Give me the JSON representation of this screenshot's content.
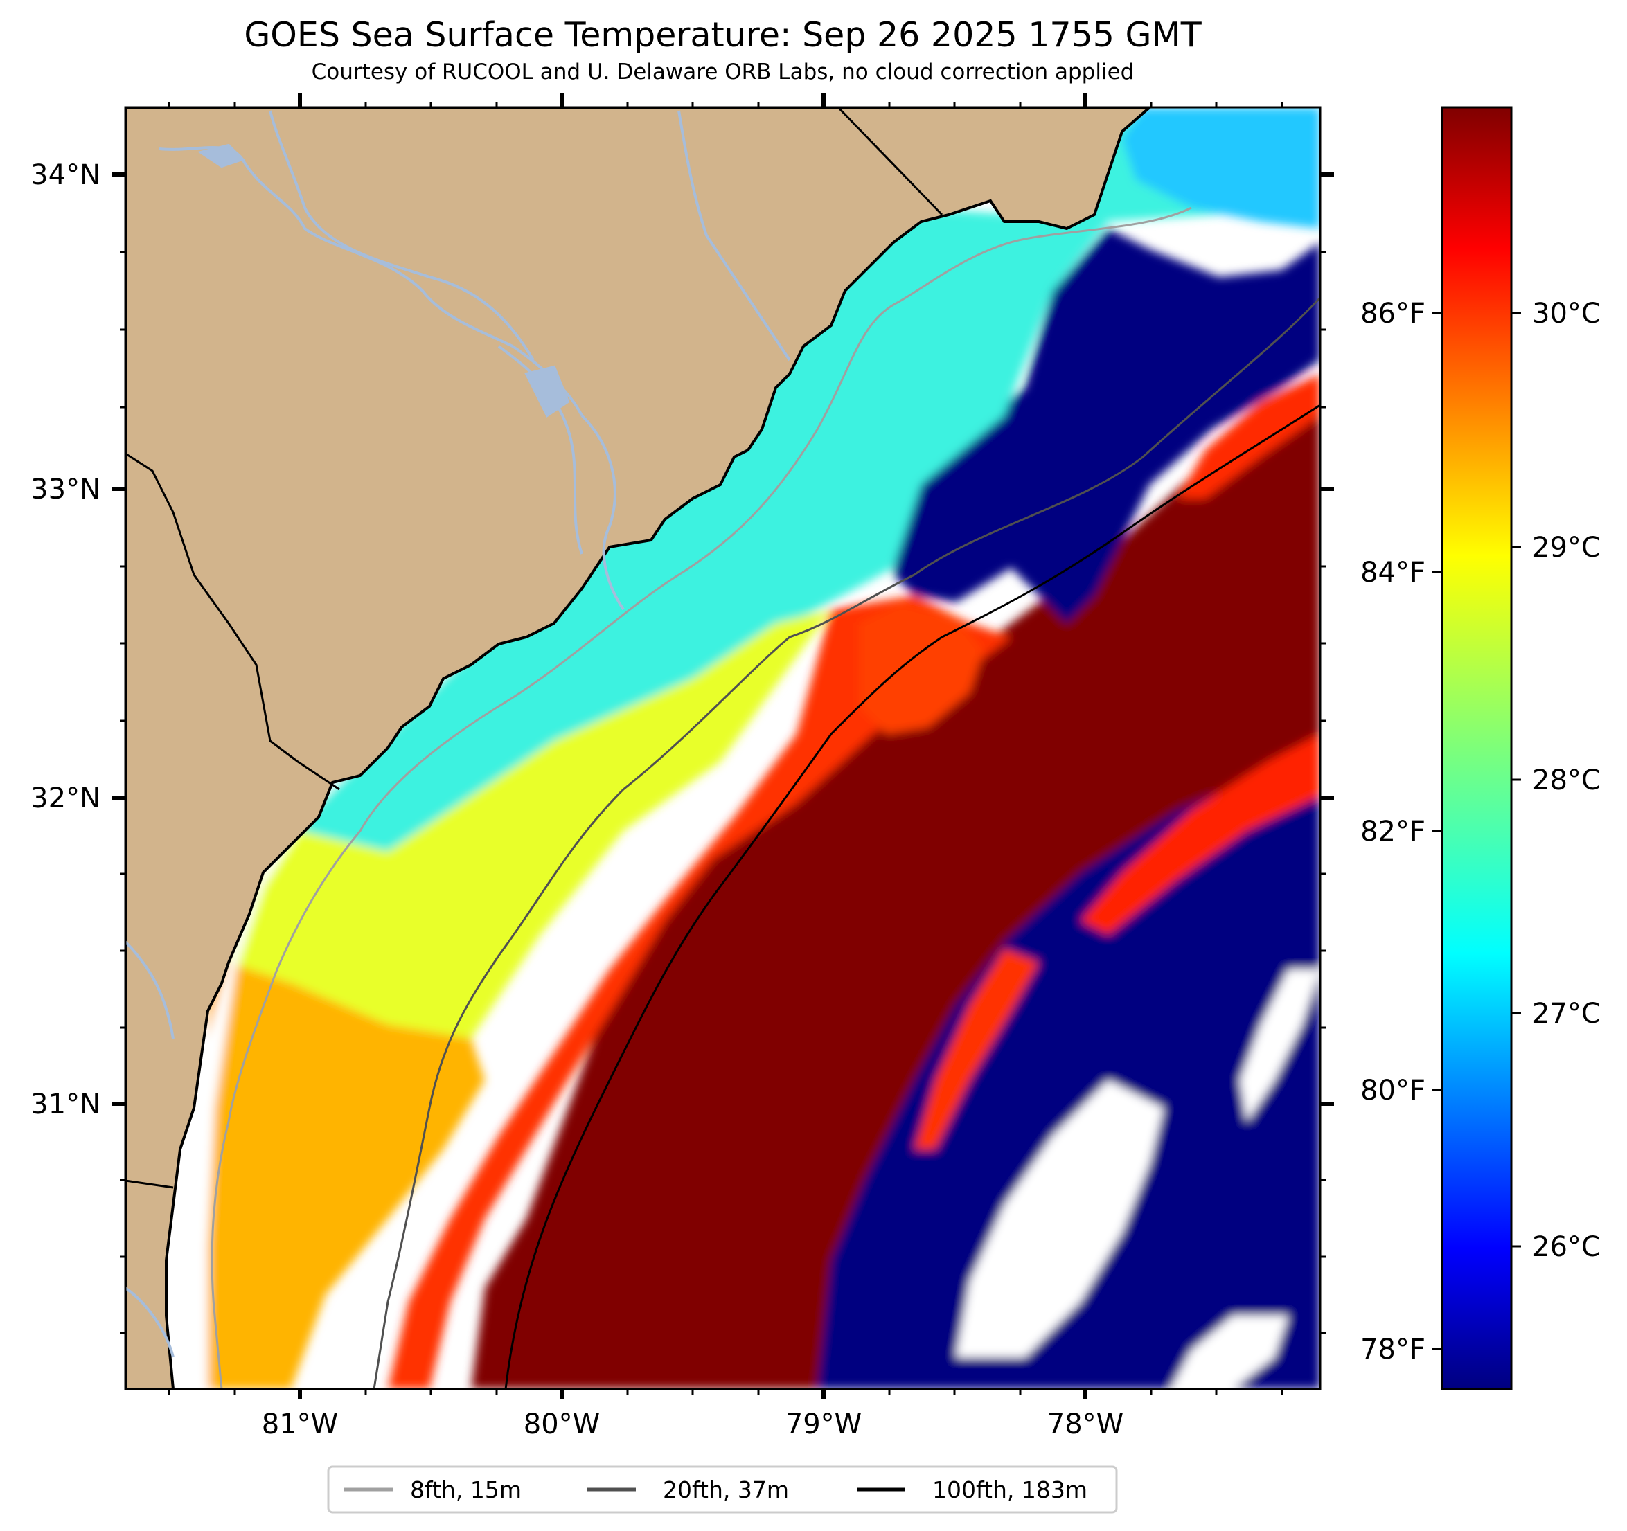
{
  "title": "GOES Sea Surface Temperature: Sep 26 2025 1755 GMT",
  "subtitle": "Courtesy of RUCOOL and U. Delaware ORB Labs, no cloud correction applied",
  "map": {
    "lon_range": [
      -81.67,
      -77.1
    ],
    "lat_range": [
      30.1,
      34.22
    ],
    "lon_ticks": [
      "81°W",
      "80°W",
      "79°W",
      "78°W"
    ],
    "lat_ticks": [
      "34°N",
      "33°N",
      "32°N",
      "31°N"
    ],
    "colors": {
      "land": "#d2b48c",
      "rivers": "#a6bddb",
      "coastline": "#000000",
      "no_data": "#ffffff",
      "cold_water": "#000080",
      "warm_water": "#800000"
    },
    "colormap": "jet"
  },
  "colorbar": {
    "celsius_ticks": [
      "26°C",
      "27°C",
      "28°C",
      "29°C",
      "30°C"
    ],
    "fahrenheit_ticks": [
      "78°F",
      "80°F",
      "82°F",
      "84°F",
      "86°F"
    ]
  },
  "legend": {
    "items": [
      {
        "label": "8fth, 15m",
        "color": "#a0a0a0"
      },
      {
        "label": "20fth, 37m",
        "color": "#505050"
      },
      {
        "label": "100fth, 183m",
        "color": "#000000"
      }
    ]
  }
}
